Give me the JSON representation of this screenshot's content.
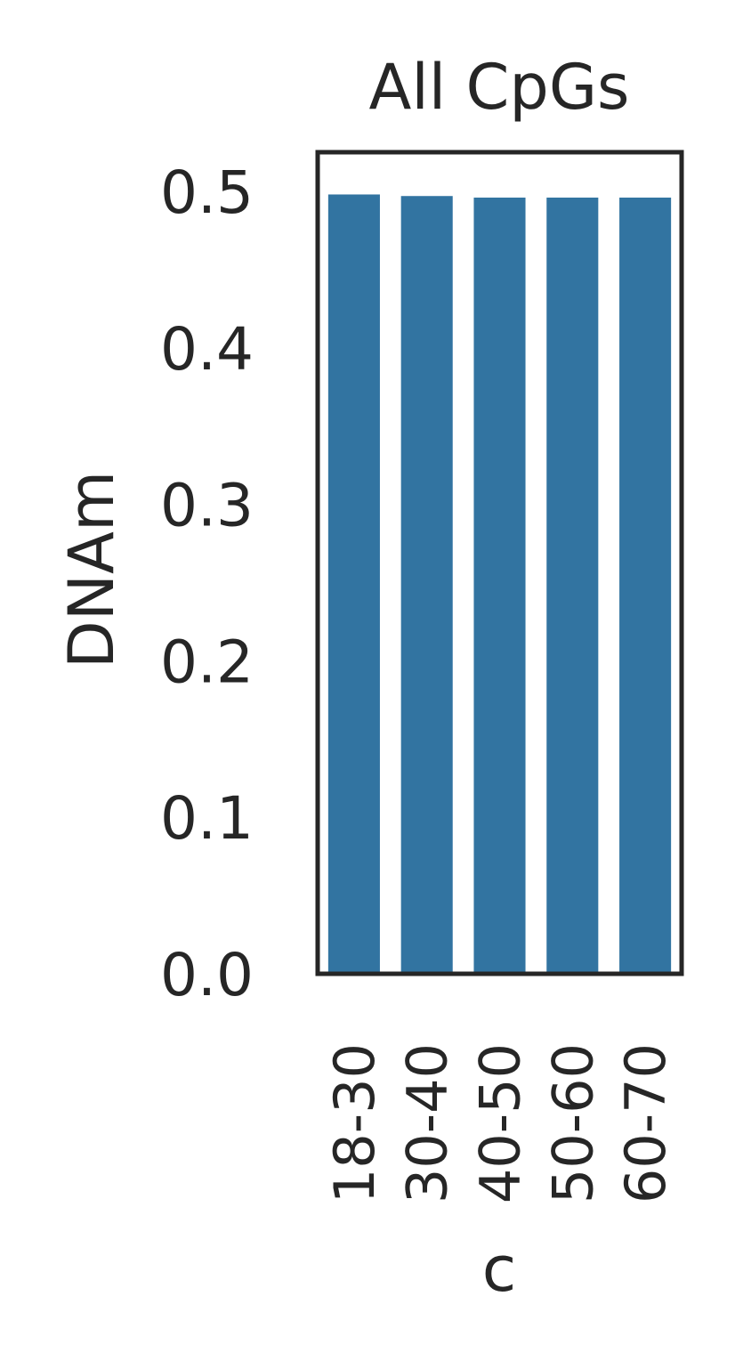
{
  "chart_data": {
    "type": "bar",
    "title": "All CpGs",
    "xlabel": "c",
    "ylabel": "DNAm",
    "categories": [
      "18-30",
      "30-40",
      "40-50",
      "50-60",
      "60-70"
    ],
    "values": [
      0.498,
      0.497,
      0.496,
      0.496,
      0.496
    ],
    "ylim": [
      0,
      0.525
    ],
    "yticks": [
      "0.0",
      "0.1",
      "0.2",
      "0.3",
      "0.4",
      "0.5"
    ],
    "grid": false,
    "bar_color": "#3274a1",
    "axis_color": "#262626"
  }
}
